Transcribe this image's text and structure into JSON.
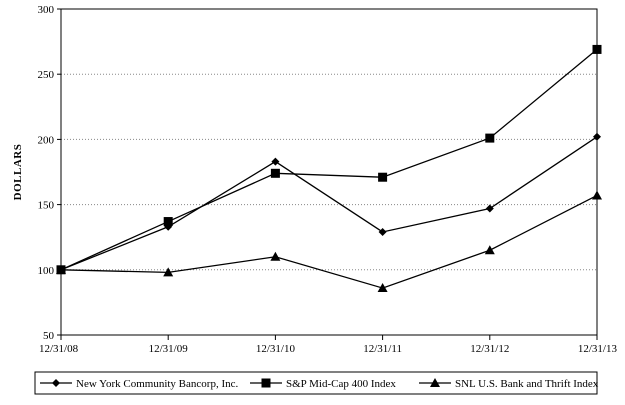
{
  "chart_data": {
    "type": "line",
    "title": "",
    "xlabel": "",
    "ylabel": "DOLLARS",
    "categories": [
      "12/31/08",
      "12/31/09",
      "12/31/10",
      "12/31/11",
      "12/31/12",
      "12/31/13"
    ],
    "ylim": [
      50,
      300
    ],
    "yticks": [
      50,
      100,
      150,
      200,
      250,
      300
    ],
    "grid": "horizontal-dotted",
    "legend_position": "bottom",
    "series": [
      {
        "name": "New York Community Bancorp, Inc.",
        "marker": "diamond",
        "values": [
          100,
          133,
          183,
          129,
          147,
          202
        ]
      },
      {
        "name": "S&P Mid-Cap 400 Index",
        "marker": "square",
        "values": [
          100,
          137,
          174,
          171,
          201,
          269
        ]
      },
      {
        "name": "SNL U.S. Bank and Thrift Index",
        "marker": "triangle",
        "values": [
          100,
          98,
          110,
          86,
          115,
          157
        ]
      }
    ],
    "colors": {
      "line": "#000000",
      "grid": "#888888"
    }
  }
}
